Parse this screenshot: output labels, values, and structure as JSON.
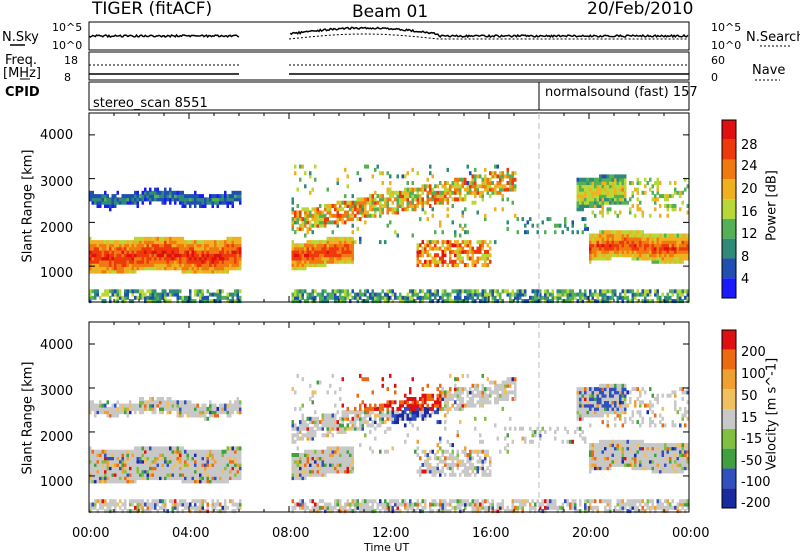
{
  "header": {
    "title": "TIGER (fitACF)",
    "beam": "Beam 01",
    "date": "20/Feb/2010"
  },
  "aux_panels": {
    "nsky_label": "N.Sky",
    "nsky_ticks": [
      "10^5",
      "10^0"
    ],
    "nsearch_label": "N.Search",
    "nsearch_ticks": [
      "10^5",
      "10^0"
    ],
    "freq_label_line1": "Freq.",
    "freq_label_line2": "[MHz]",
    "freq_ticks": [
      "18",
      "8"
    ],
    "nave_label": "Nave",
    "nave_ticks": [
      "60",
      "0"
    ],
    "cpid_label": "CPID",
    "cpid_segments": [
      {
        "label": "stereo_scan  8551"
      },
      {
        "label": "normalsound (fast)  157"
      }
    ]
  },
  "colors": {
    "power_scale": [
      "#1a1aff",
      "#1f4fb0",
      "#2f8a78",
      "#54b054",
      "#b8d838",
      "#f0b020",
      "#f07a10",
      "#ee3a0a",
      "#e01010"
    ],
    "velocity_scale": [
      "#e01010",
      "#ee6a10",
      "#f0a030",
      "#f0c060",
      "#c8c8c8",
      "#80c040",
      "#40a040",
      "#3050c0",
      "#1a2aa0"
    ]
  },
  "chart_data": [
    {
      "type": "heatmap",
      "title": "",
      "xlabel": "",
      "ylabel": "Slant Range [km]",
      "xlim": [
        "00:00",
        "00:00"
      ],
      "ylim": [
        180,
        4500
      ],
      "x_ticks": [
        "00:00",
        "04:00",
        "08:00",
        "12:00",
        "16:00",
        "20:00",
        "00:00"
      ],
      "y_ticks": [
        "4000",
        "3000",
        "2000",
        "1000"
      ],
      "colorbar": {
        "label": "Power [dB]",
        "tick_labels": [
          "28",
          "24",
          "20",
          "16",
          "12",
          "8",
          "4"
        ],
        "range": [
          0,
          30
        ]
      },
      "features": [
        {
          "name": "band",
          "start_h": 0.0,
          "end_h": 6.0,
          "center_km": 1250,
          "width_km": 380,
          "value": 27
        },
        {
          "name": "band",
          "start_h": 8.0,
          "end_h": 10.5,
          "center_km": 1300,
          "width_km": 300,
          "value": 26
        },
        {
          "name": "band",
          "start_h": 0.0,
          "end_h": 6.0,
          "center_km": 2550,
          "width_km": 200,
          "value": 9
        },
        {
          "name": "band",
          "start_h": 20.0,
          "end_h": 24.0,
          "center_km": 1450,
          "width_km": 320,
          "value": 25
        },
        {
          "name": "band",
          "start_h": 19.5,
          "end_h": 21.5,
          "center_km": 2700,
          "width_km": 350,
          "value": 18
        }
      ]
    },
    {
      "type": "heatmap",
      "title": "",
      "xlabel": "Time UT",
      "ylabel": "Slant Range [km]",
      "xlim": [
        "00:00",
        "00:00"
      ],
      "ylim": [
        180,
        4500
      ],
      "x_ticks": [
        "00:00",
        "04:00",
        "08:00",
        "12:00",
        "16:00",
        "20:00",
        "00:00"
      ],
      "y_ticks": [
        "4000",
        "3000",
        "2000",
        "1000"
      ],
      "colorbar": {
        "label": "Velocity [m s^-1]",
        "tick_labels": [
          "200",
          "100",
          "50",
          "15",
          "-15",
          "-50",
          "-100",
          "-200"
        ],
        "range": [
          -250,
          250
        ]
      },
      "features": [
        {
          "name": "ground scatter",
          "start_h": 0.0,
          "end_h": 6.0,
          "center_km": 1100,
          "width_km": 900,
          "value": 0
        },
        {
          "name": "ground scatter",
          "start_h": 20.0,
          "end_h": 24.0,
          "center_km": 1400,
          "width_km": 800,
          "value": 0
        }
      ]
    }
  ]
}
